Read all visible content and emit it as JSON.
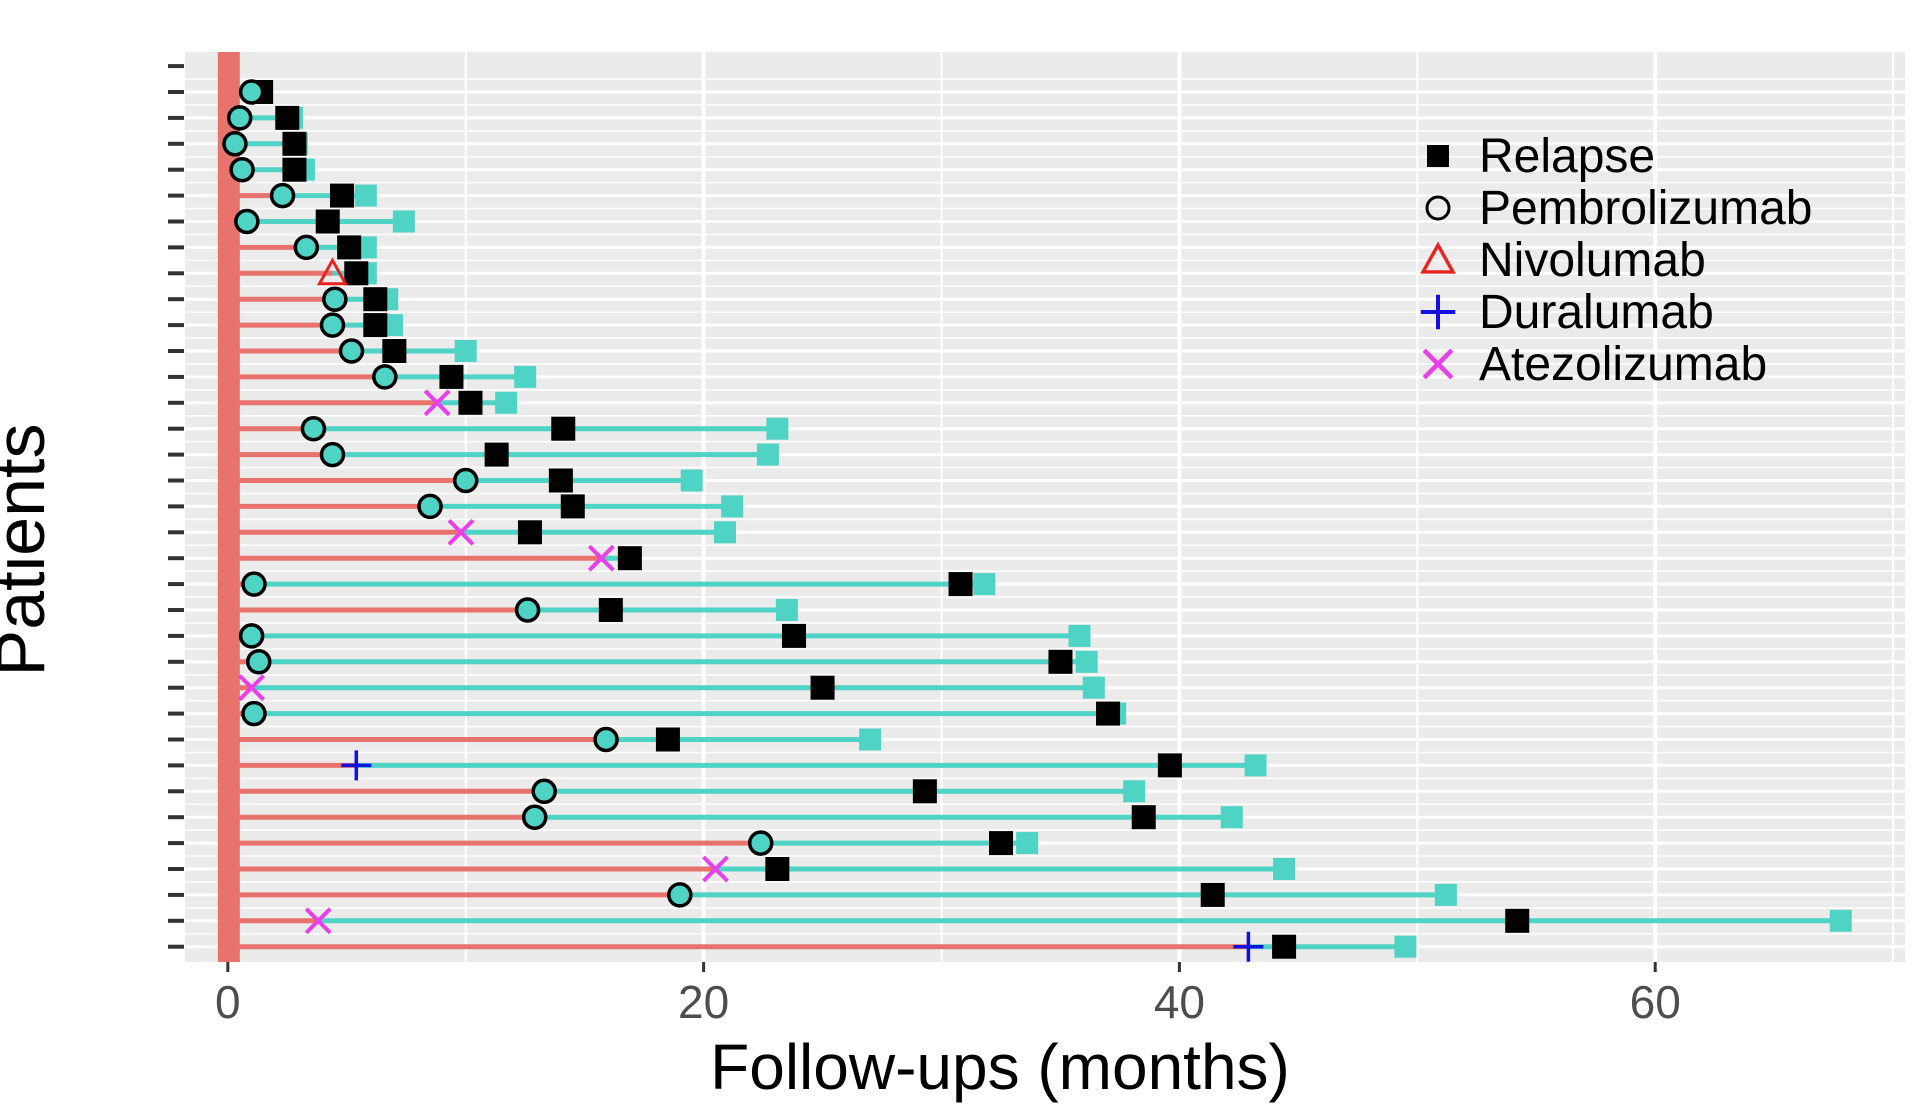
{
  "chart_data": {
    "type": "swimmer",
    "xlabel": "Follow-ups (months)",
    "ylabel": "Patients",
    "xlim": [
      -1.8,
      70.5
    ],
    "xticks": [
      0,
      20,
      40,
      60
    ],
    "grid": true,
    "legend_position": "top-right",
    "colors": {
      "panel_bg": "#ebebeb",
      "grid": "#ffffff",
      "pre_treatment": "#e8736c",
      "on_treatment": "#4fd3c4",
      "relapse": "#000000",
      "nivolumab": "#e8231f",
      "duralumab": "#1010e0",
      "atezolizumab": "#e640e6"
    },
    "legend": [
      {
        "key": "relapse",
        "label": "Relapse",
        "shape": "square"
      },
      {
        "key": "pembrolizumab",
        "label": "Pembrolizumab",
        "shape": "circle"
      },
      {
        "key": "nivolumab",
        "label": "Nivolumab",
        "shape": "triangle"
      },
      {
        "key": "duralumab",
        "label": "Duralumab",
        "shape": "plus"
      },
      {
        "key": "atezolizumab",
        "label": "Atezolizumab",
        "shape": "x"
      }
    ],
    "patients": [
      {
        "start": 1.0,
        "drug": "pembrolizumab",
        "relapse": 1.4,
        "end": 1.4
      },
      {
        "start": 0.5,
        "drug": "pembrolizumab",
        "relapse": 2.5,
        "end": 2.7
      },
      {
        "start": 0.3,
        "drug": "pembrolizumab",
        "relapse": 2.8,
        "end": 2.9
      },
      {
        "start": 0.6,
        "drug": "pembrolizumab",
        "relapse": 2.8,
        "end": 3.2
      },
      {
        "start": 2.3,
        "drug": "pembrolizumab",
        "relapse": 4.8,
        "end": 5.8
      },
      {
        "start": 0.8,
        "drug": "pembrolizumab",
        "relapse": 4.2,
        "end": 7.4
      },
      {
        "start": 3.3,
        "drug": "pembrolizumab",
        "relapse": 5.1,
        "end": 5.8
      },
      {
        "start": 4.4,
        "drug": "nivolumab",
        "relapse": 5.4,
        "end": 5.8
      },
      {
        "start": 4.5,
        "drug": "pembrolizumab",
        "relapse": 6.2,
        "end": 6.7
      },
      {
        "start": 4.4,
        "drug": "pembrolizumab",
        "relapse": 6.2,
        "end": 6.9
      },
      {
        "start": 5.2,
        "drug": "pembrolizumab",
        "relapse": 7.0,
        "end": 10.0
      },
      {
        "start": 6.6,
        "drug": "pembrolizumab",
        "relapse": 9.4,
        "end": 12.5
      },
      {
        "start": 8.8,
        "drug": "atezolizumab",
        "relapse": 10.2,
        "end": 11.7
      },
      {
        "start": 3.6,
        "drug": "pembrolizumab",
        "relapse": 14.1,
        "end": 23.1
      },
      {
        "start": 4.4,
        "drug": "pembrolizumab",
        "relapse": 11.3,
        "end": 22.7
      },
      {
        "start": 10.0,
        "drug": "pembrolizumab",
        "relapse": 14.0,
        "end": 19.5
      },
      {
        "start": 8.5,
        "drug": "pembrolizumab",
        "relapse": 14.5,
        "end": 21.2
      },
      {
        "start": 9.8,
        "drug": "atezolizumab",
        "relapse": 12.7,
        "end": 20.9
      },
      {
        "start": 15.7,
        "drug": "atezolizumab",
        "relapse": 16.9,
        "end": 16.9
      },
      {
        "start": 1.1,
        "drug": "pembrolizumab",
        "relapse": 30.8,
        "end": 31.8
      },
      {
        "start": 12.6,
        "drug": "pembrolizumab",
        "relapse": 16.1,
        "end": 23.5
      },
      {
        "start": 1.0,
        "drug": "pembrolizumab",
        "relapse": 23.8,
        "end": 35.8
      },
      {
        "start": 1.3,
        "drug": "pembrolizumab",
        "relapse": 35.0,
        "end": 36.1
      },
      {
        "start": 1.0,
        "drug": "atezolizumab",
        "relapse": 25.0,
        "end": 36.4
      },
      {
        "start": 1.1,
        "drug": "pembrolizumab",
        "relapse": 37.0,
        "end": 37.3
      },
      {
        "start": 15.9,
        "drug": "pembrolizumab",
        "relapse": 18.5,
        "end": 27.0
      },
      {
        "start": 5.4,
        "drug": "duralumab",
        "relapse": 39.6,
        "end": 43.2
      },
      {
        "start": 13.3,
        "drug": "pembrolizumab",
        "relapse": 29.3,
        "end": 38.1
      },
      {
        "start": 12.9,
        "drug": "pembrolizumab",
        "relapse": 38.5,
        "end": 42.2
      },
      {
        "start": 22.4,
        "drug": "pembrolizumab",
        "relapse": 32.5,
        "end": 33.6
      },
      {
        "start": 20.5,
        "drug": "atezolizumab",
        "relapse": 23.1,
        "end": 44.4
      },
      {
        "start": 19.0,
        "drug": "pembrolizumab",
        "relapse": 41.4,
        "end": 51.2
      },
      {
        "start": 3.8,
        "drug": "atezolizumab",
        "relapse": 54.2,
        "end": 67.8
      },
      {
        "start": 42.9,
        "drug": "duralumab",
        "relapse": 44.4,
        "end": 49.5
      }
    ]
  }
}
